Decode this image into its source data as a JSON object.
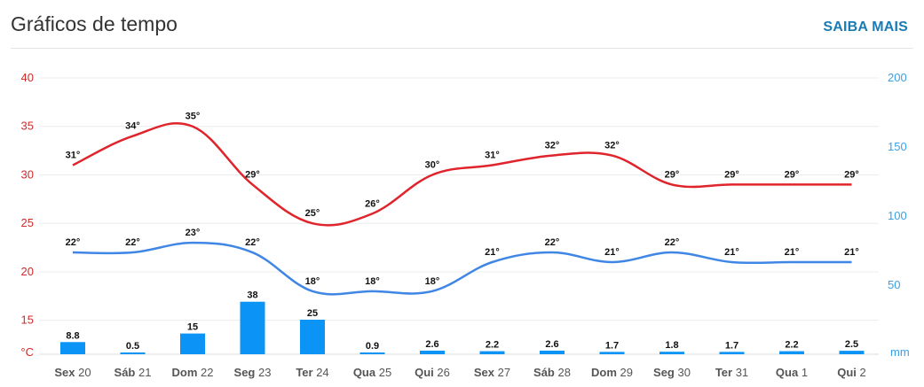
{
  "header": {
    "title": "Gráficos de tempo",
    "more_label": "SAIBA MAIS"
  },
  "chart_data": {
    "type": "line",
    "categories": [
      {
        "day": "Sex",
        "date": "20"
      },
      {
        "day": "Sáb",
        "date": "21"
      },
      {
        "day": "Dom",
        "date": "22"
      },
      {
        "day": "Seg",
        "date": "23"
      },
      {
        "day": "Ter",
        "date": "24"
      },
      {
        "day": "Qua",
        "date": "25"
      },
      {
        "day": "Qui",
        "date": "26"
      },
      {
        "day": "Sex",
        "date": "27"
      },
      {
        "day": "Sáb",
        "date": "28"
      },
      {
        "day": "Dom",
        "date": "29"
      },
      {
        "day": "Seg",
        "date": "30"
      },
      {
        "day": "Ter",
        "date": "31"
      },
      {
        "day": "Qua",
        "date": "1"
      },
      {
        "day": "Qui",
        "date": "2"
      }
    ],
    "series": [
      {
        "kind": "line",
        "axis": "left",
        "color": "#e0242b",
        "values": [
          31,
          34,
          35,
          29,
          25,
          26,
          30,
          31,
          32,
          32,
          29,
          29,
          29,
          29
        ],
        "labels": [
          "31°",
          "34°",
          "35°",
          "29°",
          "25°",
          "26°",
          "30°",
          "31°",
          "32°",
          "32°",
          "29°",
          "29°",
          "29°",
          "29°"
        ]
      },
      {
        "kind": "line",
        "axis": "left",
        "color": "#3f86e5",
        "values": [
          22,
          22,
          23,
          22,
          18,
          18,
          18,
          21,
          22,
          21,
          22,
          21,
          21,
          21
        ],
        "labels": [
          "22°",
          "22°",
          "23°",
          "22°",
          "18°",
          "18°",
          "18°",
          "21°",
          "22°",
          "21°",
          "22°",
          "21°",
          "21°",
          "21°"
        ]
      },
      {
        "kind": "bar",
        "axis": "right",
        "color": "#0b93f5",
        "values": [
          8.8,
          0.5,
          15,
          38,
          25,
          0.9,
          2.6,
          2.2,
          2.6,
          1.7,
          1.8,
          1.7,
          2.2,
          2.5
        ],
        "labels": [
          "8.8",
          "0.5",
          "15",
          "38",
          "25",
          "0.9",
          "2.6",
          "2.2",
          "2.6",
          "1.7",
          "1.8",
          "1.7",
          "2.2",
          "2.5"
        ]
      }
    ],
    "y_left": {
      "unit": "°C",
      "ticks": [
        15,
        20,
        25,
        30,
        35,
        40
      ],
      "min": 11.5,
      "max": 40,
      "color": "#d02a2a"
    },
    "y_right": {
      "unit": "mm",
      "ticks": [
        50,
        100,
        150,
        200
      ],
      "min": 0,
      "max": 200,
      "color": "#3aa0e6"
    },
    "grid": true
  }
}
